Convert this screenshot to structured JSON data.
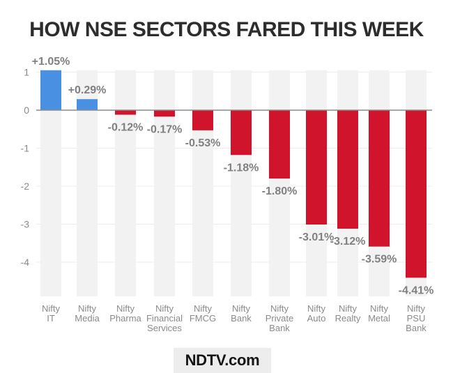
{
  "chart_data": {
    "type": "bar",
    "title": "HOW NSE SECTORS FARED THIS WEEK",
    "categories": [
      [
        "Nifty",
        "IT"
      ],
      [
        "Nifty",
        "Media"
      ],
      [
        "Nifty",
        "Pharma"
      ],
      [
        "Nifty",
        "Financial",
        "Services"
      ],
      [
        "Nifty",
        "FMCG"
      ],
      [
        "Nifty",
        "Bank"
      ],
      [
        "Nifty",
        "Private",
        "Bank"
      ],
      [
        "Nifty",
        "Auto"
      ],
      [
        "Nifty",
        "Realty"
      ],
      [
        "Nifty",
        "Metal"
      ],
      [
        "Nifty",
        "PSU",
        "Bank"
      ]
    ],
    "values": [
      1.05,
      0.29,
      -0.12,
      -0.17,
      -0.53,
      -1.18,
      -1.8,
      -3.01,
      -3.12,
      -3.59,
      -4.41
    ],
    "data_labels": [
      "+1.05%",
      "+0.29%",
      "-0.12%",
      "-0.17%",
      "-0.53%",
      "-1.18%",
      "-1.80%",
      "-3.01%",
      "-3.12%",
      "-3.59%",
      "-4.41%"
    ],
    "yticks": [
      1,
      0,
      -1,
      -2,
      -3,
      -4
    ],
    "ytick_labels": [
      "1",
      "0",
      "-1",
      "-2",
      "-3",
      "-4"
    ],
    "ylim": [
      -4.9,
      1.05
    ],
    "grid": true,
    "colors": {
      "positive": "#4a90e2",
      "negative": "#d0142c",
      "background_bar": "#f2f2f2",
      "label": "#808080",
      "zero_line": "#8a8a8a"
    }
  },
  "branding": {
    "logo_text": "NDTV.com"
  }
}
